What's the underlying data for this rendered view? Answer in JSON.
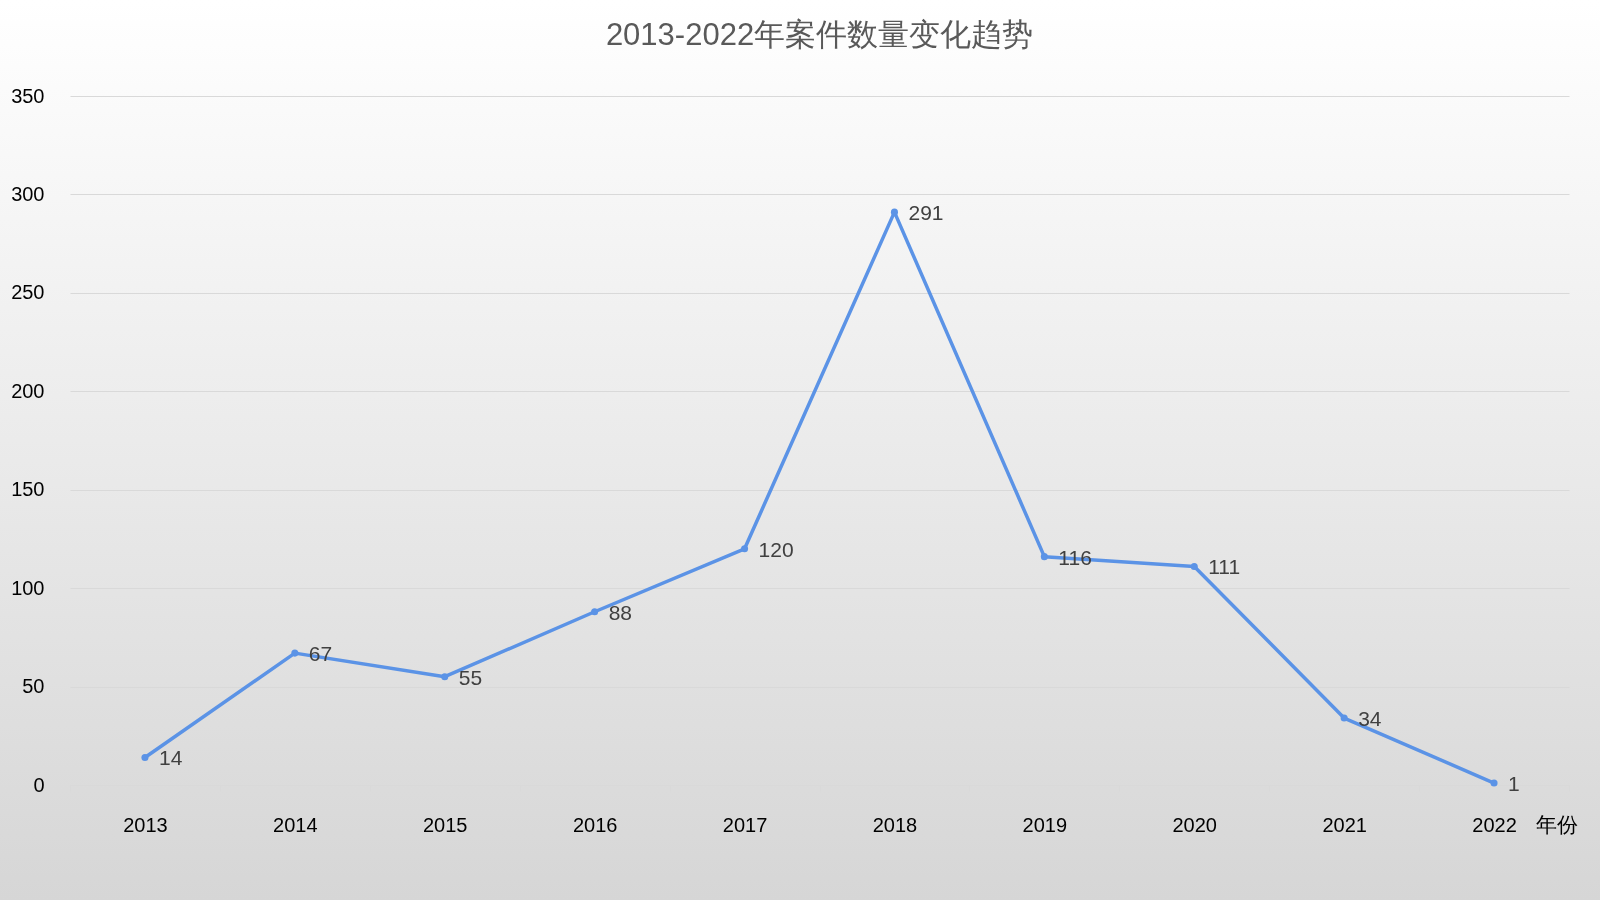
{
  "chart_data": {
    "type": "line",
    "title": "2013-2022年案件数量变化趋势",
    "xlabel": "年份",
    "categories": [
      "2013",
      "2014",
      "2015",
      "2016",
      "2017",
      "2018",
      "2019",
      "2020",
      "2021",
      "2022"
    ],
    "series": [
      {
        "color": "#5b93e6",
        "values": [
          14,
          67,
          55,
          88,
          120,
          291,
          116,
          111,
          34,
          1
        ]
      }
    ],
    "ylim": [
      0,
      350
    ],
    "yticks": [
      0,
      50,
      100,
      150,
      200,
      250,
      300,
      350
    ],
    "grid": "y",
    "data_labels": true,
    "marker": "circle",
    "line_style": "solid",
    "legend": false
  }
}
